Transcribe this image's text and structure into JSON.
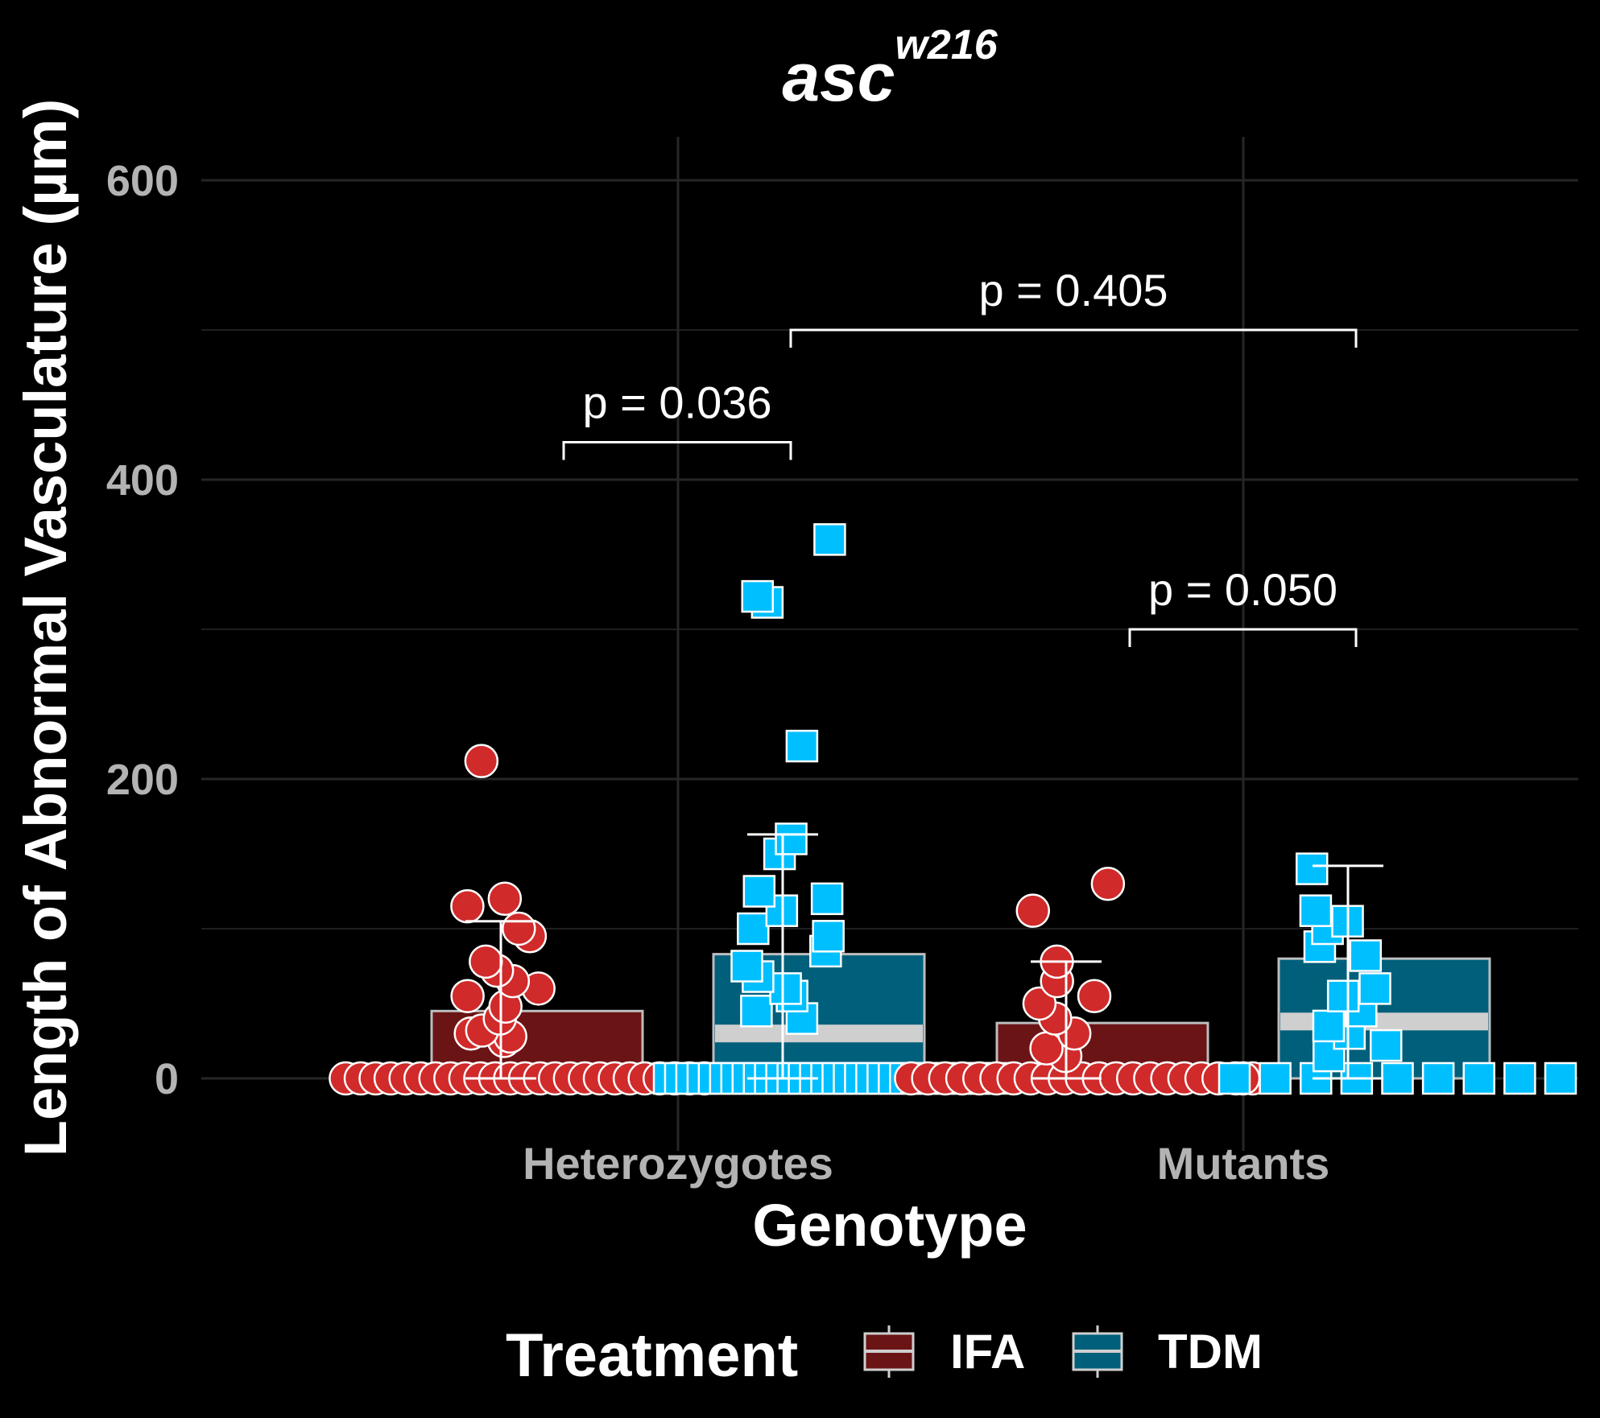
{
  "chart_data": {
    "type": "bar",
    "title": "asc",
    "title_superscript": "w216",
    "xlabel": "Genotype",
    "ylabel": "Length of Abnormal Vasculature (µm)",
    "ylim": [
      -60,
      650
    ],
    "yticks": [
      0,
      200,
      400,
      600
    ],
    "ytick_labels": [
      "0",
      "200",
      "400",
      "600"
    ],
    "grid": true,
    "categories": [
      "Heterozygotes",
      "Mutants"
    ],
    "legend": {
      "title": "Treatment",
      "placement": "bottom"
    },
    "series": [
      {
        "name": "IFA",
        "color": "#6b1416",
        "point_color": "#d02a2a",
        "point_shape": "circle",
        "values": [
          45,
          37
        ],
        "medians": [
          0,
          0
        ],
        "error_upper": [
          105,
          78
        ],
        "error_lower": [
          0,
          0
        ]
      },
      {
        "name": "TDM",
        "color": "#005f7a",
        "point_color": "#00bfff",
        "point_shape": "square",
        "values": [
          83,
          80
        ],
        "medians": [
          30,
          38
        ],
        "error_upper": [
          163,
          142
        ],
        "error_lower": [
          0,
          0
        ]
      }
    ],
    "points": {
      "Heterozygotes": {
        "IFA": [
          0,
          0,
          0,
          0,
          0,
          0,
          0,
          0,
          0,
          0,
          0,
          0,
          0,
          0,
          0,
          0,
          0,
          0,
          0,
          0,
          0,
          0,
          0,
          0,
          0,
          25,
          28,
          30,
          32,
          40,
          48,
          55,
          60,
          65,
          72,
          78,
          95,
          100,
          115,
          120,
          212
        ],
        "TDM": [
          0,
          0,
          0,
          0,
          0,
          0,
          0,
          0,
          0,
          0,
          0,
          0,
          0,
          0,
          0,
          0,
          0,
          0,
          0,
          0,
          0,
          0,
          0,
          0,
          0,
          0,
          0,
          0,
          0,
          0,
          40,
          45,
          55,
          60,
          68,
          75,
          85,
          95,
          100,
          112,
          120,
          125,
          150,
          160,
          222,
          318,
          322,
          360
        ]
      },
      "Mutants": {
        "IFA": [
          0,
          0,
          0,
          0,
          0,
          0,
          0,
          0,
          0,
          0,
          0,
          0,
          0,
          0,
          0,
          0,
          0,
          0,
          0,
          0,
          0,
          0,
          15,
          20,
          30,
          40,
          50,
          55,
          65,
          78,
          112,
          130
        ],
        "TDM": [
          0,
          0,
          0,
          0,
          0,
          0,
          0,
          0,
          0,
          15,
          22,
          30,
          35,
          45,
          55,
          60,
          82,
          88,
          100,
          105,
          112,
          140
        ]
      }
    },
    "comparisons": [
      {
        "label": "p = 0.036",
        "from": "Heterozygotes-IFA",
        "to": "Heterozygotes-TDM",
        "y": 425
      },
      {
        "label": "p = 0.405",
        "from": "Heterozygotes-TDM",
        "to": "Mutants-TDM",
        "y": 500
      },
      {
        "label": "p = 0.050",
        "from": "Mutants-IFA",
        "to": "Mutants-TDM",
        "y": 300
      }
    ]
  }
}
